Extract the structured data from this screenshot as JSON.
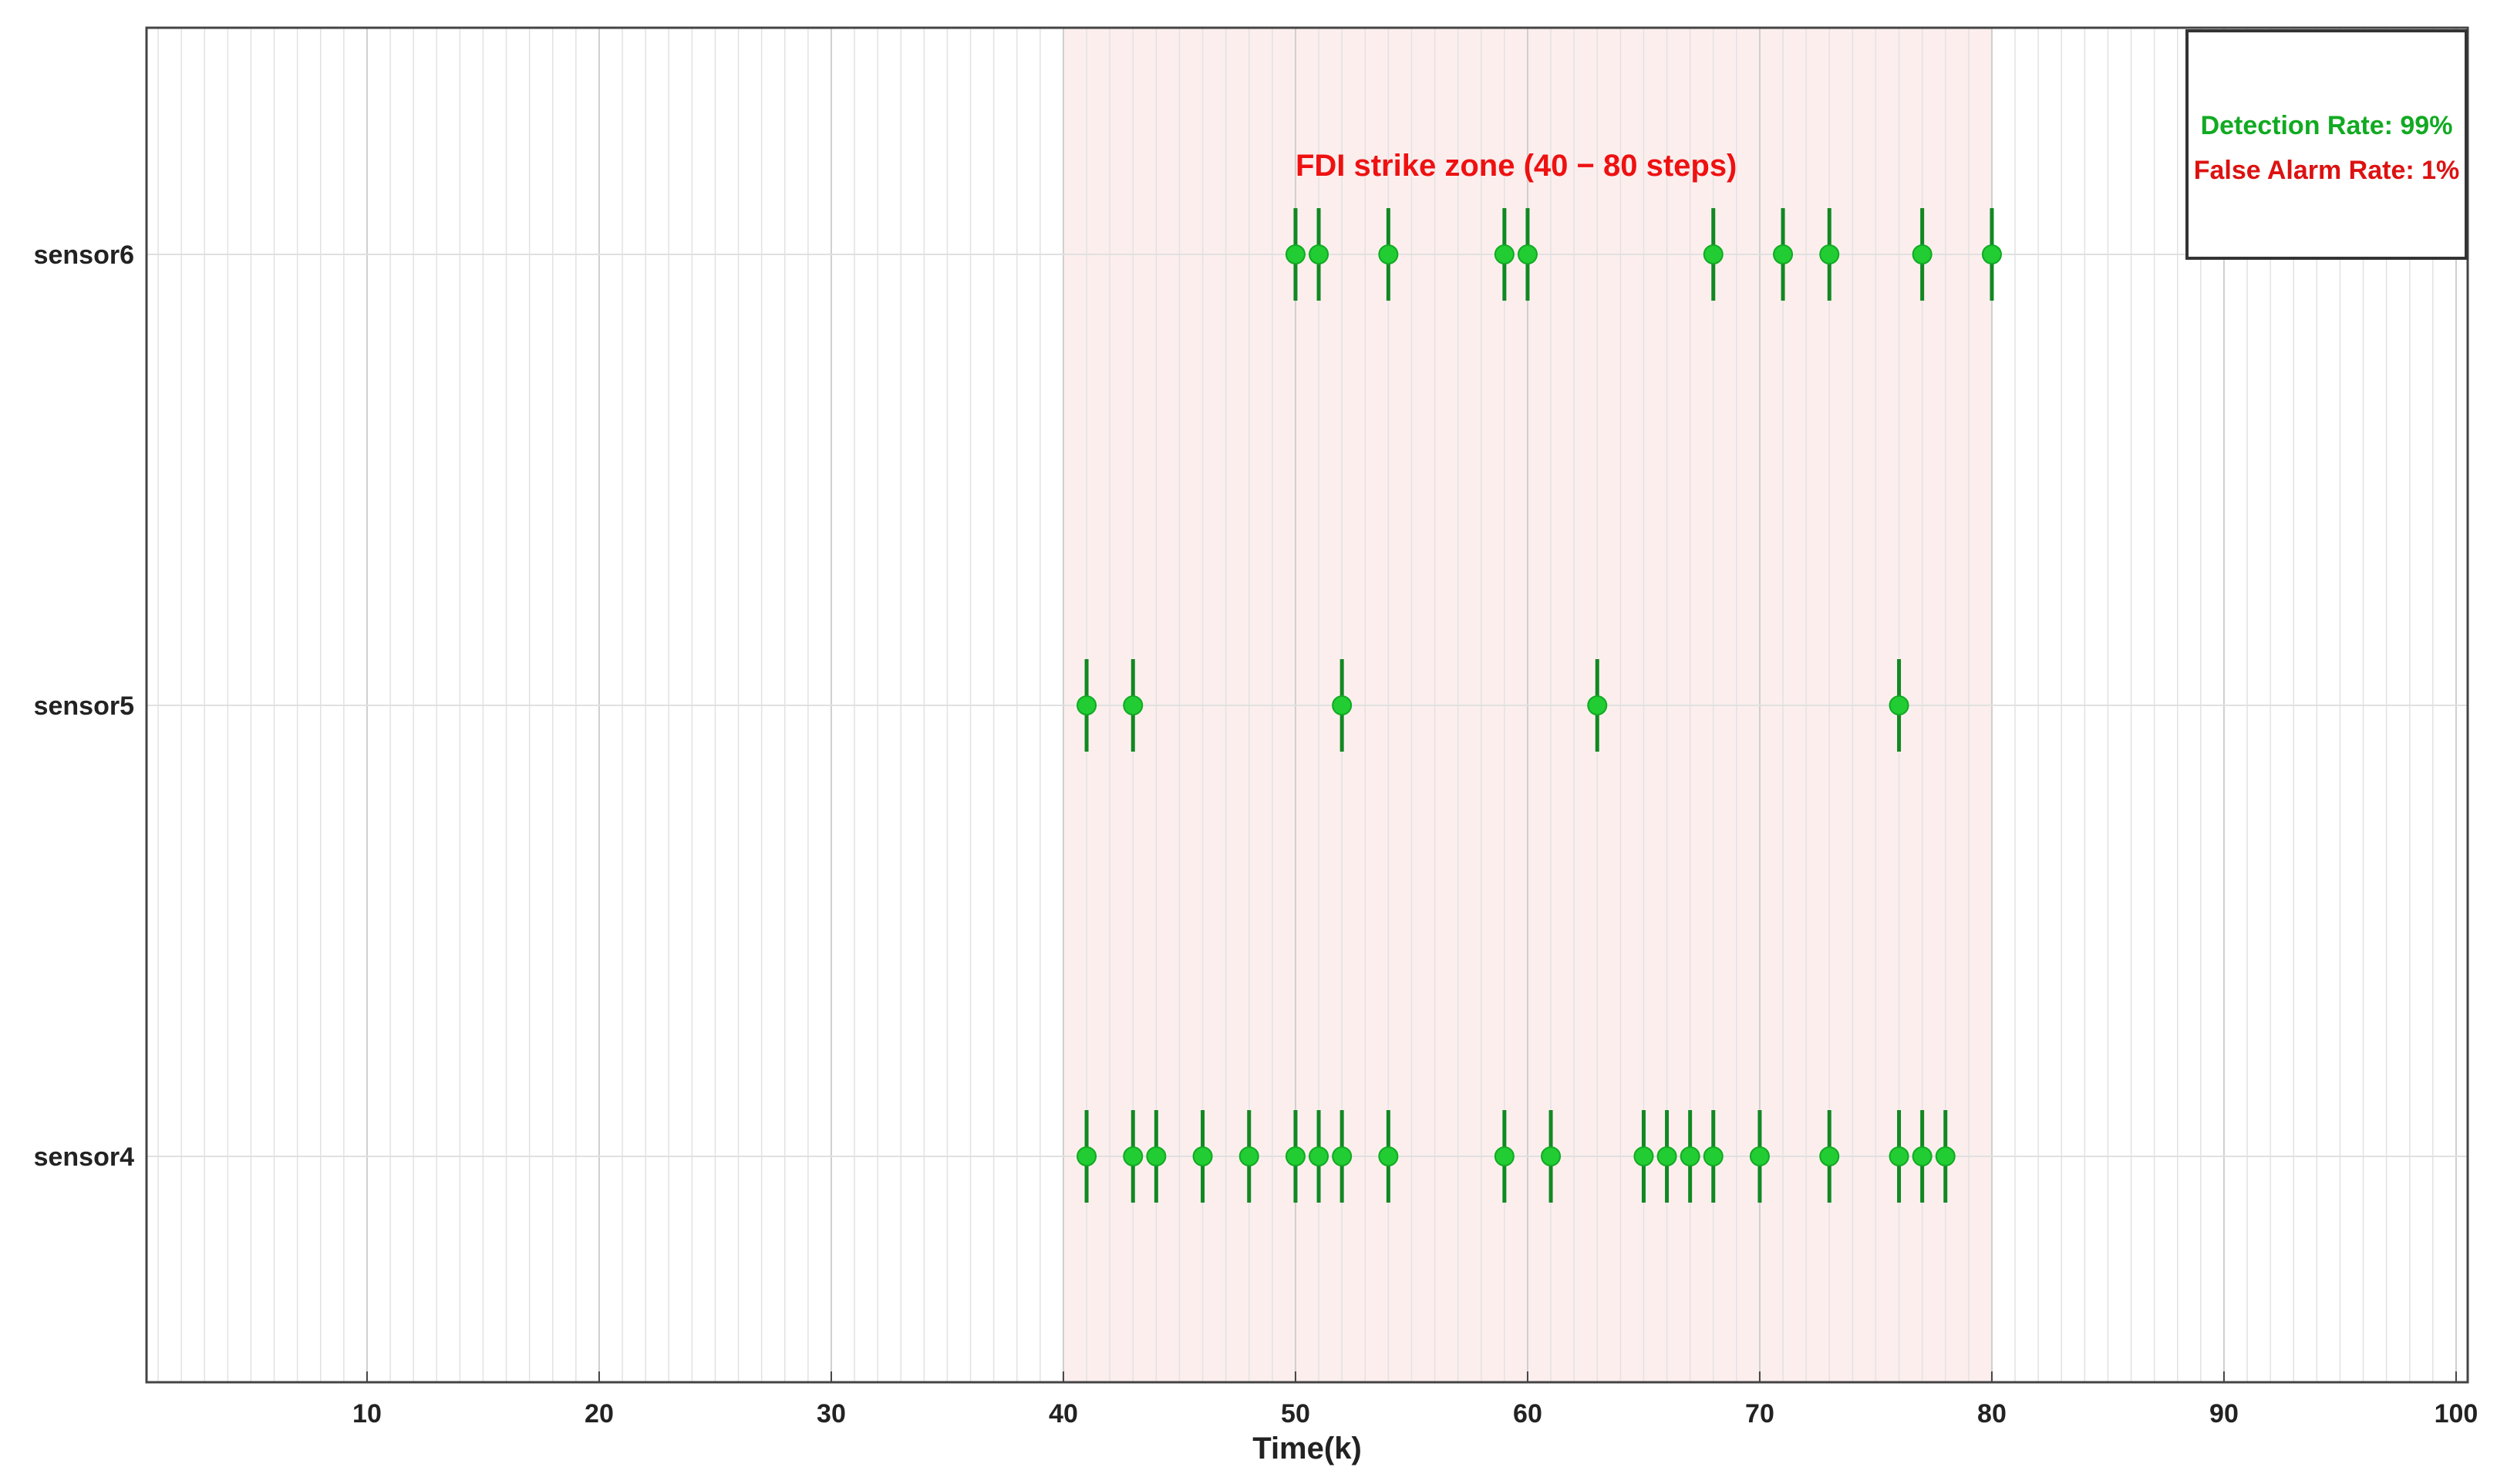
{
  "chart_data": {
    "type": "scatter",
    "title": "",
    "xlabel": "Time(k)",
    "ylabel": "",
    "xlim": [
      0.5,
      100.5
    ],
    "x_ticks": [
      "10",
      "20",
      "30",
      "40",
      "50",
      "60",
      "70",
      "80",
      "90",
      "100"
    ],
    "x_minor_grid_step": 1,
    "grid": true,
    "categories": [
      "sensor6",
      "sensor5",
      "sensor4"
    ],
    "series": [
      {
        "category": "sensor6",
        "x": [
          50,
          51,
          54,
          59,
          60,
          68,
          71,
          73,
          77,
          80
        ]
      },
      {
        "category": "sensor5",
        "x": [
          41,
          43,
          52,
          63,
          76
        ]
      },
      {
        "category": "sensor4",
        "x": [
          41,
          43,
          44,
          46,
          48,
          50,
          51,
          52,
          54,
          59,
          61,
          65,
          66,
          67,
          68,
          70,
          73,
          76,
          77,
          78
        ]
      }
    ],
    "highlight_zone": {
      "x_start": 40,
      "x_end": 80,
      "label": "FDI strike zone (40 − 80 steps)",
      "fill_color": "#fdeeee",
      "label_color": "#ee1111"
    },
    "marker_color": "#22cc33",
    "line_color": "#118822",
    "annotation_box": {
      "placement": "top-right",
      "detection_rate": "Detection Rate: 99%",
      "detection_color": "#11aa22",
      "false_alarm_rate": "False Alarm Rate: 1%",
      "false_alarm_color": "#dd1111"
    }
  }
}
